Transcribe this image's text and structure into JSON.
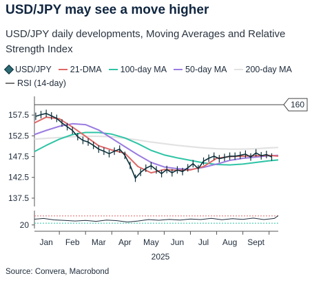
{
  "title": "USD/JPY may see a move higher",
  "subtitle": "USD/JPY daily developments, Moving Averages and Relative Strength Index",
  "source": "Source: Convera, Macrobond",
  "legend": [
    {
      "label": "USD/JPY",
      "color": "#0b2f3a"
    },
    {
      "label": "21-DMA",
      "color": "#e06666"
    },
    {
      "label": "100-day MA",
      "color": "#2ec4a6"
    },
    {
      "label": "50-day MA",
      "color": "#9a7be0"
    },
    {
      "label": "200-day MA",
      "color": "#e2e2e2"
    },
    {
      "label": "RSI (14-day)",
      "color": "#777777"
    }
  ],
  "chart_data": {
    "type": "line",
    "title": "USD/JPY daily developments, Moving Averages and Relative Strength Index",
    "x_tick_labels": [
      "Jan",
      "Feb",
      "Mar",
      "Apr",
      "May",
      "Jun",
      "Jul",
      "Aug",
      "Sept"
    ],
    "x_year_label": "2025",
    "ylim": [
      135.5,
      162
    ],
    "y_ticks": [
      137.5,
      142.5,
      147.5,
      152.5,
      157.5
    ],
    "reference_line": {
      "value": 160,
      "label": "160"
    },
    "rsi_ticks": [
      20
    ],
    "rsi_ylim": [
      0,
      100
    ],
    "x_range_month_index": [
      -0.45,
      8.85
    ],
    "series": [
      {
        "name": "USD/JPY",
        "type": "ohlc",
        "color": "#0b2f3a",
        "x": [
          -0.4,
          -0.2,
          0.0,
          0.2,
          0.4,
          0.6,
          0.8,
          1.0,
          1.2,
          1.4,
          1.6,
          1.8,
          2.0,
          2.2,
          2.4,
          2.6,
          2.8,
          3.0,
          3.2,
          3.4,
          3.6,
          3.8,
          4.0,
          4.2,
          4.4,
          4.6,
          4.8,
          5.0,
          5.2,
          5.4,
          5.6,
          5.8,
          6.0,
          6.2,
          6.4,
          6.6,
          6.8,
          7.0,
          7.2,
          7.4,
          7.6,
          7.8,
          8.0,
          8.2,
          8.4,
          8.6
        ],
        "values": [
          157.2,
          157.6,
          157.9,
          157.3,
          156.7,
          155.6,
          154.7,
          153.8,
          152.3,
          151.4,
          151.0,
          150.2,
          149.3,
          148.8,
          148.2,
          148.8,
          149.3,
          147.8,
          145.4,
          142.3,
          143.7,
          144.7,
          145.3,
          144.3,
          143.4,
          144.4,
          143.6,
          144.3,
          143.9,
          144.8,
          145.8,
          144.6,
          146.4,
          147.1,
          147.6,
          147.0,
          147.3,
          147.6,
          147.6,
          147.8,
          148.1,
          147.4,
          148.4,
          147.7,
          148.0,
          147.4
        ]
      },
      {
        "name": "21-DMA",
        "type": "line",
        "color": "#e06666",
        "x": [
          -0.45,
          0.0,
          0.5,
          1.0,
          1.5,
          2.0,
          2.5,
          3.0,
          3.5,
          4.0,
          4.5,
          5.0,
          5.5,
          6.0,
          6.5,
          7.0,
          7.5,
          8.0,
          8.5,
          8.85
        ],
        "values": [
          155.6,
          157.0,
          156.6,
          154.6,
          152.4,
          150.1,
          149.1,
          148.3,
          145.1,
          143.6,
          144.4,
          144.2,
          144.3,
          145.1,
          147.1,
          147.5,
          147.6,
          147.7,
          147.8,
          147.6
        ]
      },
      {
        "name": "100-day MA",
        "type": "line",
        "color": "#2ec4a6",
        "x": [
          -0.45,
          0.0,
          0.5,
          1.0,
          1.5,
          2.0,
          2.5,
          3.0,
          3.5,
          4.0,
          4.5,
          5.0,
          5.5,
          6.0,
          6.5,
          7.0,
          7.5,
          8.0,
          8.5,
          8.85
        ],
        "values": [
          148.7,
          150.2,
          151.7,
          152.8,
          153.3,
          153.3,
          152.9,
          152.0,
          150.6,
          149.0,
          147.9,
          147.2,
          146.6,
          146.0,
          145.6,
          145.5,
          145.7,
          146.1,
          146.5,
          146.7
        ]
      },
      {
        "name": "50-day MA",
        "type": "line",
        "color": "#9a7be0",
        "x": [
          -0.45,
          0.0,
          0.5,
          1.0,
          1.5,
          2.0,
          2.5,
          3.0,
          3.5,
          4.0,
          4.5,
          5.0,
          5.5,
          6.0,
          6.5,
          7.0,
          7.5,
          8.0,
          8.5,
          8.85
        ],
        "values": [
          152.8,
          153.8,
          154.8,
          155.4,
          155.2,
          153.9,
          151.9,
          149.9,
          147.9,
          146.1,
          145.0,
          144.6,
          144.4,
          144.9,
          145.7,
          146.6,
          147.1,
          147.4,
          147.7,
          147.8
        ]
      },
      {
        "name": "200-day MA",
        "type": "line",
        "color": "#e2e2e2",
        "x": [
          -0.45,
          0.0,
          0.5,
          1.0,
          1.5,
          2.0,
          2.5,
          3.0,
          3.5,
          4.0,
          4.5,
          5.0,
          5.5,
          6.0,
          6.5,
          7.0,
          7.5,
          8.0,
          8.5,
          8.85
        ],
        "values": [
          151.7,
          151.9,
          152.1,
          152.3,
          152.4,
          152.4,
          152.3,
          151.9,
          151.5,
          151.0,
          150.6,
          150.2,
          149.9,
          149.6,
          149.4,
          149.3,
          149.3,
          149.4,
          149.6,
          149.7
        ]
      },
      {
        "name": "RSI (14-day)",
        "type": "line",
        "color": "#777777",
        "panel": "rsi",
        "x": [
          -0.45,
          -0.1,
          0.3,
          0.7,
          1.1,
          1.5,
          1.9,
          2.3,
          2.7,
          3.1,
          3.5,
          3.9,
          4.3,
          4.7,
          5.1,
          5.5,
          5.9,
          6.3,
          6.7,
          7.1,
          7.5,
          7.9,
          8.3,
          8.7,
          8.85
        ],
        "values": [
          52,
          56,
          48,
          45,
          42,
          45,
          40,
          47,
          44,
          36,
          42,
          50,
          46,
          51,
          47,
          53,
          50,
          57,
          49,
          55,
          51,
          58,
          50,
          56,
          72
        ]
      }
    ]
  }
}
